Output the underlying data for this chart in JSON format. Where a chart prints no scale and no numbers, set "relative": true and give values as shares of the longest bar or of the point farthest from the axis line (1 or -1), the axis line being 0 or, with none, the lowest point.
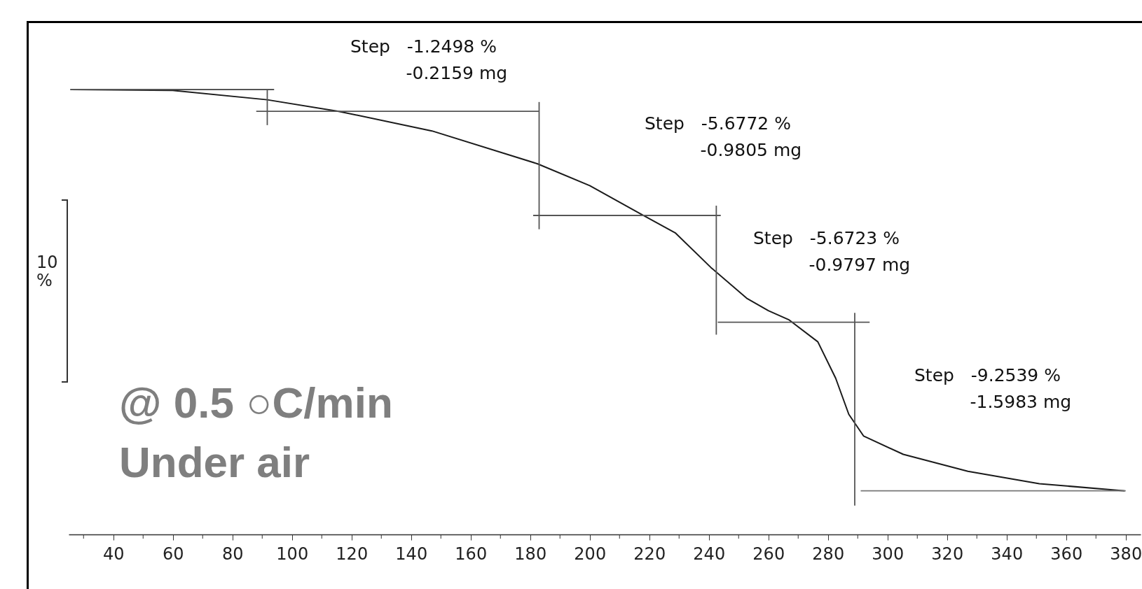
{
  "chart_data": {
    "type": "line",
    "relative": true,
    "grid": false,
    "marker": "none",
    "line_style": "solid",
    "xlim": [
      25,
      385
    ],
    "xticks": [
      {
        "value": 30,
        "label": null
      },
      40,
      {
        "value": 50,
        "label": null
      },
      60,
      {
        "value": 70,
        "label": null
      },
      80,
      {
        "value": 90,
        "label": null
      },
      100,
      {
        "value": 110,
        "label": null
      },
      120,
      {
        "value": 130,
        "label": null
      },
      140,
      {
        "value": 150,
        "label": null
      },
      160,
      {
        "value": 170,
        "label": null
      },
      180,
      {
        "value": 190,
        "label": null
      },
      200,
      {
        "value": 210,
        "label": null
      },
      220,
      {
        "value": 230,
        "label": null
      },
      240,
      {
        "value": 250,
        "label": null
      },
      260,
      {
        "value": 270,
        "label": null
      },
      280,
      {
        "value": 290,
        "label": null
      },
      300,
      {
        "value": 310,
        "label": null
      },
      320,
      {
        "value": 330,
        "label": null
      },
      340,
      {
        "value": 350,
        "label": null
      },
      360,
      {
        "value": 370,
        "label": null
      },
      380
    ],
    "series": [
      {
        "color": "#1a1a1a",
        "x": [
          25.6,
          60,
          91.7,
          115.7,
          147,
          182.5,
          200,
          216.7,
          228.7,
          240.7,
          252.7,
          260,
          267,
          276.6,
          282.6,
          287,
          292,
          305.3,
          327,
          351,
          379.7
        ],
        "values": [
          1,
          0.998,
          0.977,
          0.951,
          0.907,
          0.833,
          0.784,
          0.722,
          0.678,
          0.6,
          0.531,
          0.503,
          0.482,
          0.433,
          0.351,
          0.27,
          0.221,
          0.18,
          0.142,
          0.114,
          0.098
        ]
      },
      {
        "color": "#555555",
        "x": [
          25.6,
          94
        ],
        "values": [
          1,
          1
        ]
      },
      {
        "color": "#555555",
        "x": [
          91.7,
          91.7
        ],
        "values": [
          0.92,
          1
        ]
      },
      {
        "color": "#555555",
        "x": [
          88,
          183
        ],
        "values": [
          0.951,
          0.951
        ]
      },
      {
        "color": "#555555",
        "x": [
          183,
          183
        ],
        "values": [
          0.686,
          0.972
        ]
      },
      {
        "color": "#555555",
        "x": [
          181,
          244
        ],
        "values": [
          0.717,
          0.717
        ]
      },
      {
        "color": "#555555",
        "x": [
          242.5,
          242.5
        ],
        "values": [
          0.449,
          0.739
        ]
      },
      {
        "color": "#555555",
        "x": [
          243,
          294
        ],
        "values": [
          0.477,
          0.477
        ]
      },
      {
        "color": "#555555",
        "x": [
          289,
          289
        ],
        "values": [
          0.065,
          0.498
        ]
      },
      {
        "color": "#777777",
        "x": [
          291,
          380
        ],
        "values": [
          0.098,
          0.098
        ]
      }
    ],
    "annotations": [
      "10 %",
      "@ 0.5 ○C/min",
      "Under air",
      "Step   -1.2498 %\n          -0.2159 mg",
      "Step   -5.6772 %\n          -0.9805 mg",
      "Step   -5.6723 %\n          -0.9797 mg",
      "Step   -9.2539 %\n          -1.5983 mg"
    ]
  }
}
